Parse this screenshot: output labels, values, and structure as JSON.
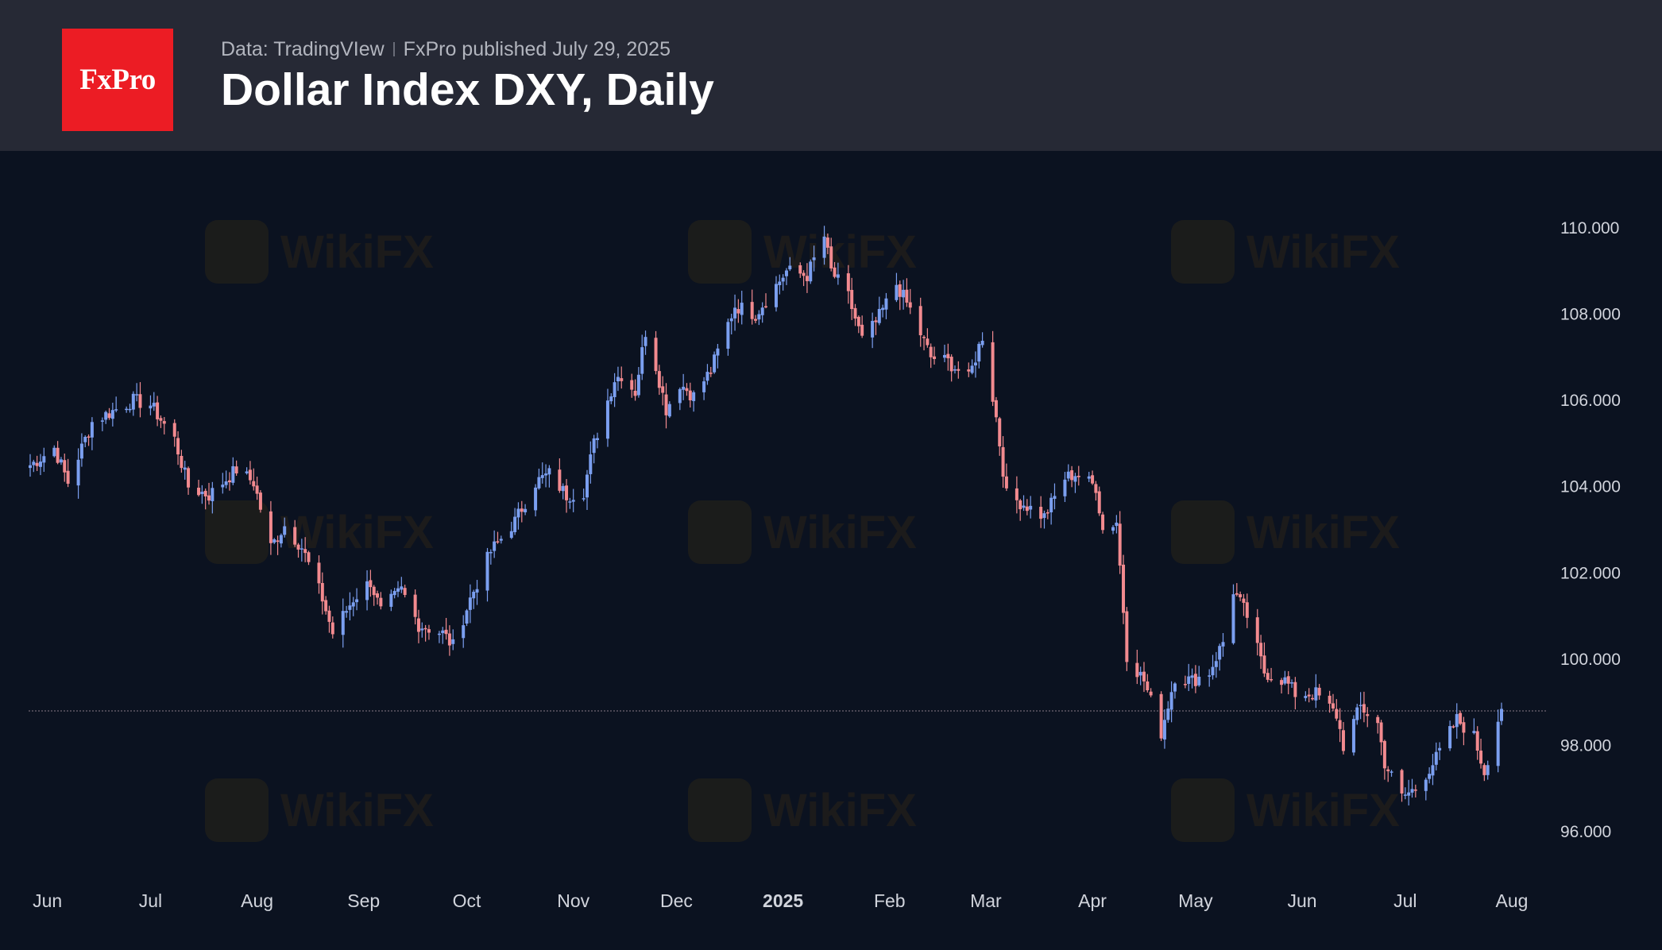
{
  "header": {
    "logo_text": "FxPro",
    "source_text": "Data: TradingVIew",
    "publisher_text": "FxPro published July 29, 2025",
    "title": "Dollar Index DXY, Daily"
  },
  "watermark_text": "WikiFX",
  "colors": {
    "background": "#0b1220",
    "header": "#262935",
    "logo": "#ec1c24",
    "up": "#7b9ff0",
    "down": "#f28a8f",
    "price_line": "#8a7a86"
  },
  "chart_data": {
    "type": "candlestick",
    "title": "Dollar Index DXY, Daily",
    "x_tick_labels": [
      "Jun",
      "Jul",
      "Aug",
      "Sep",
      "Oct",
      "Nov",
      "Dec",
      "2025",
      "Feb",
      "Mar",
      "Apr",
      "May",
      "Jun",
      "Jul",
      "Aug"
    ],
    "y_tick_labels": [
      "110.000",
      "108.000",
      "106.000",
      "104.000",
      "102.000",
      "100.000",
      "98.000",
      "96.000"
    ],
    "ylim": [
      95.0,
      110.6
    ],
    "y_axis_position": "right",
    "grid": false,
    "current_price_line": 98.8,
    "date_start": "2024-05-27",
    "date_end": "2025-07-29",
    "anchors": [
      [
        "2024-05-27",
        104.5
      ],
      [
        "2024-06-03",
        104.9
      ],
      [
        "2024-06-07",
        104.1
      ],
      [
        "2024-06-14",
        105.5
      ],
      [
        "2024-06-21",
        105.8
      ],
      [
        "2024-06-26",
        106.0
      ],
      [
        "2024-07-01",
        105.9
      ],
      [
        "2024-07-08",
        105.1
      ],
      [
        "2024-07-12",
        104.0
      ],
      [
        "2024-07-18",
        103.8
      ],
      [
        "2024-07-26",
        104.4
      ],
      [
        "2024-07-31",
        104.1
      ],
      [
        "2024-08-05",
        102.6
      ],
      [
        "2024-08-09",
        103.1
      ],
      [
        "2024-08-14",
        102.6
      ],
      [
        "2024-08-20",
        101.4
      ],
      [
        "2024-08-23",
        100.6
      ],
      [
        "2024-08-29",
        101.4
      ],
      [
        "2024-09-03",
        101.8
      ],
      [
        "2024-09-06",
        101.1
      ],
      [
        "2024-09-12",
        101.6
      ],
      [
        "2024-09-17",
        100.8
      ],
      [
        "2024-09-24",
        100.6
      ],
      [
        "2024-09-27",
        100.3
      ],
      [
        "2024-10-02",
        101.4
      ],
      [
        "2024-10-08",
        102.5
      ],
      [
        "2024-10-15",
        103.2
      ],
      [
        "2024-10-21",
        104.1
      ],
      [
        "2024-10-25",
        104.3
      ],
      [
        "2024-10-30",
        103.8
      ],
      [
        "2024-11-04",
        103.9
      ],
      [
        "2024-11-07",
        105.0
      ],
      [
        "2024-11-13",
        106.5
      ],
      [
        "2024-11-15",
        106.6
      ],
      [
        "2024-11-19",
        106.2
      ],
      [
        "2024-11-22",
        107.6
      ],
      [
        "2024-11-25",
        106.8
      ],
      [
        "2024-11-28",
        105.8
      ],
      [
        "2024-12-02",
        106.4
      ],
      [
        "2024-12-06",
        106.1
      ],
      [
        "2024-12-11",
        106.7
      ],
      [
        "2024-12-18",
        108.2
      ],
      [
        "2024-12-24",
        108.0
      ],
      [
        "2025-01-02",
        109.0
      ],
      [
        "2025-01-08",
        108.9
      ],
      [
        "2025-01-13",
        109.8
      ],
      [
        "2025-01-15",
        109.0
      ],
      [
        "2025-01-20",
        108.4
      ],
      [
        "2025-01-24",
        107.4
      ],
      [
        "2025-01-28",
        107.8
      ],
      [
        "2025-02-03",
        108.7
      ],
      [
        "2025-02-07",
        108.1
      ],
      [
        "2025-02-13",
        107.0
      ],
      [
        "2025-02-18",
        106.9
      ],
      [
        "2025-02-24",
        106.5
      ],
      [
        "2025-02-28",
        107.5
      ],
      [
        "2025-03-04",
        105.6
      ],
      [
        "2025-03-07",
        103.8
      ],
      [
        "2025-03-12",
        103.6
      ],
      [
        "2025-03-18",
        103.3
      ],
      [
        "2025-03-24",
        104.2
      ],
      [
        "2025-03-27",
        104.3
      ],
      [
        "2025-04-02",
        104.0
      ],
      [
        "2025-04-04",
        103.0
      ],
      [
        "2025-04-08",
        103.2
      ],
      [
        "2025-04-11",
        100.1
      ],
      [
        "2025-04-16",
        99.5
      ],
      [
        "2025-04-21",
        98.3
      ],
      [
        "2025-04-25",
        99.6
      ],
      [
        "2025-04-30",
        99.5
      ],
      [
        "2025-05-05",
        99.7
      ],
      [
        "2025-05-09",
        100.4
      ],
      [
        "2025-05-12",
        101.6
      ],
      [
        "2025-05-16",
        101.0
      ],
      [
        "2025-05-21",
        99.7
      ],
      [
        "2025-05-27",
        99.5
      ],
      [
        "2025-05-30",
        99.2
      ],
      [
        "2025-06-05",
        99.2
      ],
      [
        "2025-06-11",
        98.7
      ],
      [
        "2025-06-13",
        98.0
      ],
      [
        "2025-06-18",
        98.9
      ],
      [
        "2025-06-23",
        98.5
      ],
      [
        "2025-06-25",
        97.6
      ],
      [
        "2025-06-30",
        96.8
      ],
      [
        "2025-07-04",
        97.0
      ],
      [
        "2025-07-10",
        97.7
      ],
      [
        "2025-07-16",
        98.6
      ],
      [
        "2025-07-21",
        98.2
      ],
      [
        "2025-07-24",
        97.4
      ],
      [
        "2025-07-28",
        98.6
      ],
      [
        "2025-07-29",
        98.9
      ]
    ]
  }
}
